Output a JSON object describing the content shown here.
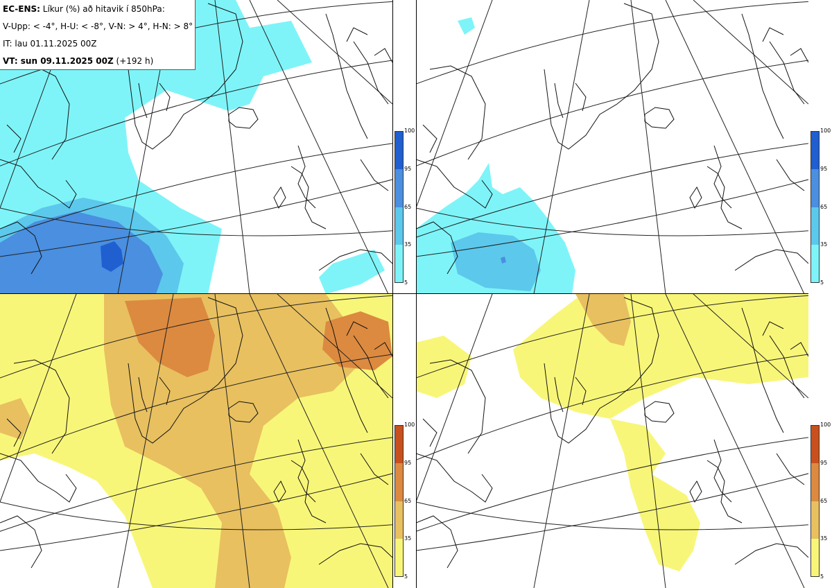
{
  "header": {
    "line1_bold": "EC-ENS:",
    "line1_rest": " Líkur (%) að hitavik í 850hPa:",
    "line2": "V-Upp: < -4°, H-U: < -8°, V-N: > 4°, H-N: > 8°",
    "line3": "IT: lau 01.11.2025 00Z",
    "line4_bold": "VT: sun 09.11.2025 00Z",
    "line4_rest": " (+192 h)"
  },
  "panels": [
    {
      "id": "V-Upp",
      "meaning": "< -4°",
      "scale": "cold"
    },
    {
      "id": "H-U",
      "meaning": "< -8°",
      "scale": "cold"
    },
    {
      "id": "V-N",
      "meaning": "> 4°",
      "scale": "warm"
    },
    {
      "id": "H-N",
      "meaning": "> 8°",
      "scale": "warm"
    }
  ],
  "colorbars": {
    "cold": {
      "ticks": [
        "100",
        "95",
        "65",
        "35",
        "5"
      ],
      "colors": [
        "#1f5fd0",
        "#4a8fe0",
        "#5cc8ec",
        "#7ef4f8"
      ]
    },
    "warm": {
      "ticks": [
        "100",
        "95",
        "65",
        "35",
        "5"
      ],
      "colors": [
        "#c8501e",
        "#dc8a40",
        "#e8c060",
        "#f8f678"
      ]
    }
  }
}
